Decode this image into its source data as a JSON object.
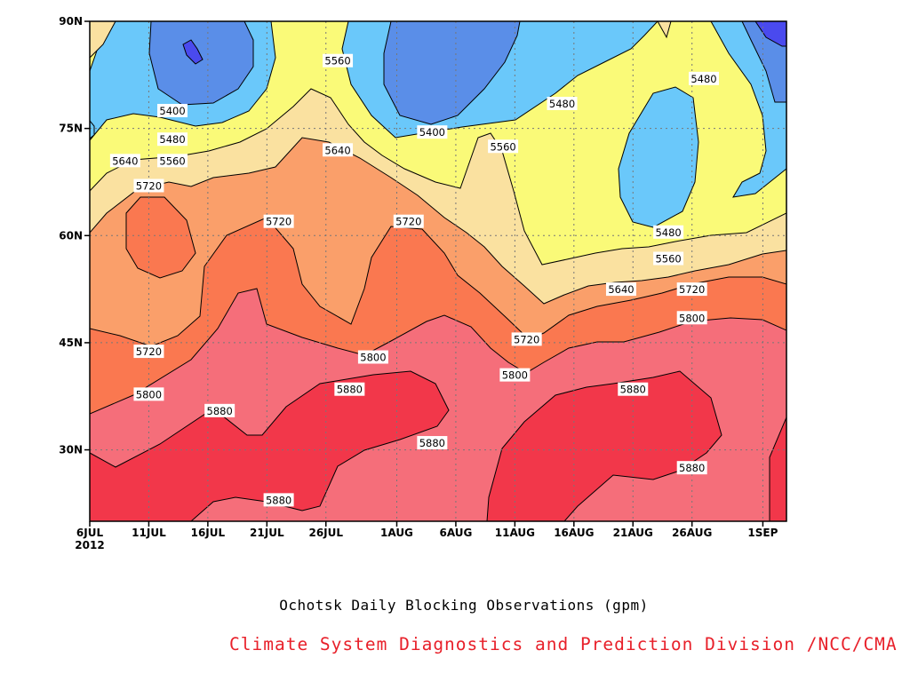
{
  "title": "Ochotsk Daily Blocking Observations (gpm)",
  "credit": "Climate System Diagnostics and Prediction Division /NCC/CMA",
  "chart_data": {
    "type": "heatmap",
    "subtype": "filled-contour (time-latitude Hovmoller of 500 hPa geopotential height)",
    "title": "Ochotsk Daily Blocking Observations (gpm)",
    "x_range": [
      "2012-07-06",
      "2012-09-03"
    ],
    "y_range": [
      20,
      90
    ],
    "x_ticks": [
      {
        "date": "2012-07-06",
        "label": "6JUL",
        "sublabel": "2012"
      },
      {
        "date": "2012-07-11",
        "label": "11JUL"
      },
      {
        "date": "2012-07-16",
        "label": "16JUL"
      },
      {
        "date": "2012-07-21",
        "label": "21JUL"
      },
      {
        "date": "2012-07-26",
        "label": "26JUL"
      },
      {
        "date": "2012-08-01",
        "label": "1AUG"
      },
      {
        "date": "2012-08-06",
        "label": "6AUG"
      },
      {
        "date": "2012-08-11",
        "label": "11AUG"
      },
      {
        "date": "2012-08-16",
        "label": "16AUG"
      },
      {
        "date": "2012-08-21",
        "label": "21AUG"
      },
      {
        "date": "2012-08-26",
        "label": "26AUG"
      },
      {
        "date": "2012-09-01",
        "label": "1SEP"
      }
    ],
    "y_ticks": [
      {
        "lat": 30,
        "label": "30N"
      },
      {
        "lat": 45,
        "label": "45N"
      },
      {
        "lat": 60,
        "label": "60N"
      },
      {
        "lat": 75,
        "label": "75N"
      },
      {
        "lat": 90,
        "label": "90N"
      }
    ],
    "grid": "dotted",
    "levels": [
      5400,
      5480,
      5560,
      5640,
      5720,
      5800,
      5880
    ],
    "level_colors": {
      "below_5400": "#5a8ee8",
      "below_5320": "#4a4aee",
      "5400-5480": "#6ac8fa",
      "5480-5560": "#fafa78",
      "5560-5640": "#fae1a0",
      "5640-5720": "#fa9f6a",
      "5720-5800": "#fa7850",
      "5800-5880": "#f56e7a",
      "above_5880": "#f2374a"
    },
    "contour_labels": [
      {
        "value": "5400",
        "date": "2012-07-13",
        "lat": 77.5
      },
      {
        "value": "5480",
        "date": "2012-07-13",
        "lat": 73.5
      },
      {
        "value": "5560",
        "date": "2012-07-13",
        "lat": 70.5
      },
      {
        "value": "5640",
        "date": "2012-07-09",
        "lat": 70.5
      },
      {
        "value": "5720",
        "date": "2012-07-11",
        "lat": 67.0
      },
      {
        "value": "5560",
        "date": "2012-07-27",
        "lat": 84.5
      },
      {
        "value": "5640",
        "date": "2012-07-27",
        "lat": 72.0
      },
      {
        "value": "5720",
        "date": "2012-07-22",
        "lat": 62.0
      },
      {
        "value": "5720",
        "date": "2012-08-02",
        "lat": 62.0
      },
      {
        "value": "5400",
        "date": "2012-08-04",
        "lat": 74.5
      },
      {
        "value": "5560",
        "date": "2012-08-10",
        "lat": 72.5
      },
      {
        "value": "5480",
        "date": "2012-08-15",
        "lat": 78.5
      },
      {
        "value": "5480",
        "date": "2012-08-27",
        "lat": 82.0
      },
      {
        "value": "5480",
        "date": "2012-08-24",
        "lat": 60.5
      },
      {
        "value": "5560",
        "date": "2012-08-24",
        "lat": 56.8
      },
      {
        "value": "5640",
        "date": "2012-08-20",
        "lat": 52.5
      },
      {
        "value": "5720",
        "date": "2012-08-26",
        "lat": 52.5
      },
      {
        "value": "5800",
        "date": "2012-08-26",
        "lat": 48.5
      },
      {
        "value": "5720",
        "date": "2012-07-11",
        "lat": 43.8
      },
      {
        "value": "5800",
        "date": "2012-07-11",
        "lat": 37.8
      },
      {
        "value": "5880",
        "date": "2012-07-17",
        "lat": 35.5
      },
      {
        "value": "5880",
        "date": "2012-07-22",
        "lat": 23.0
      },
      {
        "value": "5800",
        "date": "2012-07-30",
        "lat": 43.0
      },
      {
        "value": "5880",
        "date": "2012-07-28",
        "lat": 38.5
      },
      {
        "value": "5880",
        "date": "2012-08-04",
        "lat": 31.0
      },
      {
        "value": "5720",
        "date": "2012-08-12",
        "lat": 45.5
      },
      {
        "value": "5800",
        "date": "2012-08-11",
        "lat": 40.5
      },
      {
        "value": "5880",
        "date": "2012-08-21",
        "lat": 38.5
      },
      {
        "value": "5880",
        "date": "2012-08-26",
        "lat": 27.5
      }
    ]
  }
}
